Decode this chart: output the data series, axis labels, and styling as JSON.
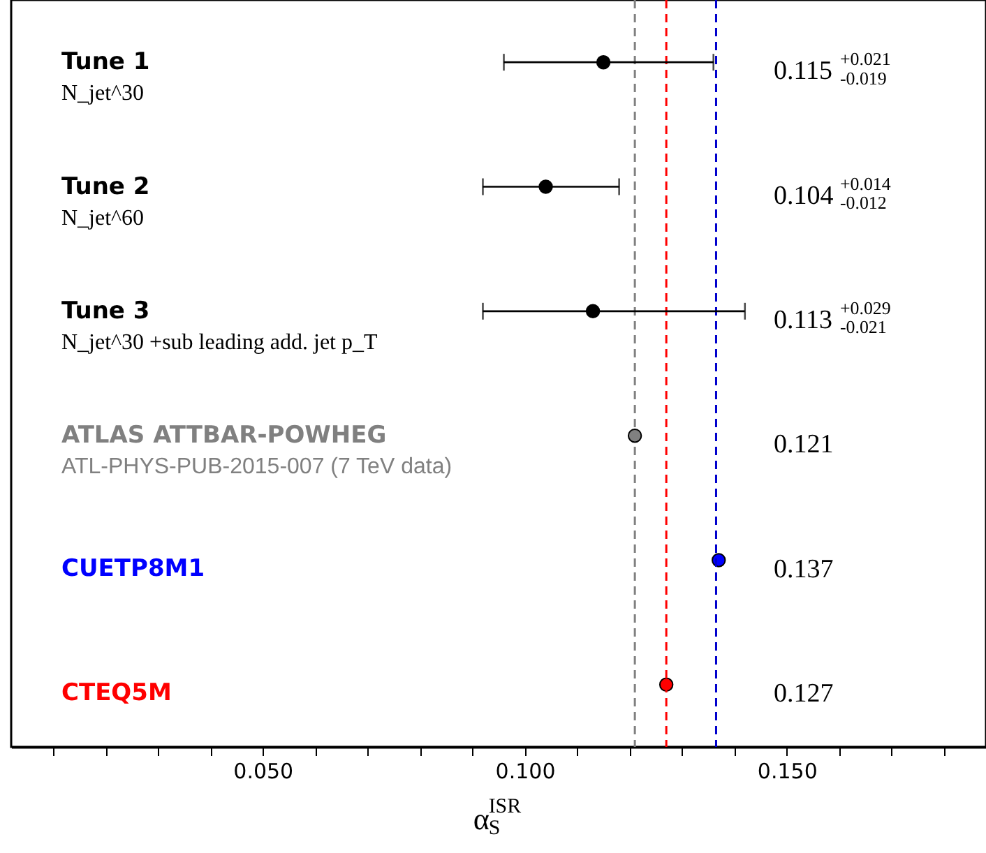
{
  "chart_data": {
    "type": "scatter",
    "orientation": "horizontal",
    "categories": [
      "Tune 1\nN_jet^30",
      "Tune 2\nN_jet^60",
      "Tune 3\nN_jet^30 +sub leading add. jet p_T",
      "ATLAS ATTBAR-POWHEG\nATL-PHYS-PUB-2015-007 (7 TeV data)",
      "CUETP8M1",
      "CTEQ5M"
    ],
    "values": [
      0.115,
      0.104,
      0.113,
      0.121,
      0.137,
      0.127
    ],
    "colors": [
      "#000000",
      "#000000",
      "#000000",
      "#808080",
      "#0000ff",
      "#ff0000"
    ],
    "errors": [
      [
        0.096,
        0.136
      ],
      [
        0.092,
        0.118
      ],
      [
        0.092,
        0.142
      ],
      null,
      null,
      null
    ],
    "annotations": [
      "0.115$^{+0.021}$$_{-0.019}$",
      "0.104$^{+0.014}$$_{-0.012}$",
      "0.113$^{+0.029}$$_{-0.021}$",
      "0.121",
      "0.137",
      "0.127"
    ],
    "xlabel": "α$^{ISR}$$_{S}$",
    "xlim": [
      0.002,
      0.188
    ],
    "xticks": [
      {
        "value": 0.01,
        "label": null
      },
      {
        "value": 0.02,
        "label": null
      },
      {
        "value": 0.03,
        "label": null
      },
      {
        "value": 0.04,
        "label": null
      },
      {
        "value": 0.05,
        "label": "0.050"
      },
      {
        "value": 0.06,
        "label": null
      },
      {
        "value": 0.07,
        "label": null
      },
      {
        "value": 0.08,
        "label": null
      },
      {
        "value": 0.09,
        "label": null
      },
      {
        "value": 0.1,
        "label": "0.100"
      },
      {
        "value": 0.11,
        "label": null
      },
      {
        "value": 0.12,
        "label": null
      },
      {
        "value": 0.13,
        "label": null
      },
      {
        "value": 0.14,
        "label": null
      },
      {
        "value": 0.15,
        "label": "0.150"
      },
      {
        "value": 0.16,
        "label": null
      },
      {
        "value": 0.17,
        "label": null
      },
      {
        "value": 0.18,
        "label": null
      }
    ],
    "ref_lines": [
      {
        "axis": "x",
        "value": 0.121,
        "color": "#808080",
        "line_style": "dashed"
      },
      {
        "axis": "x",
        "value": 0.127,
        "color": "#ff0000",
        "line_style": "dashed"
      },
      {
        "axis": "x",
        "value": 0.1365,
        "color": "#0000cc",
        "line_style": "dashed"
      }
    ],
    "marker": "circle"
  }
}
